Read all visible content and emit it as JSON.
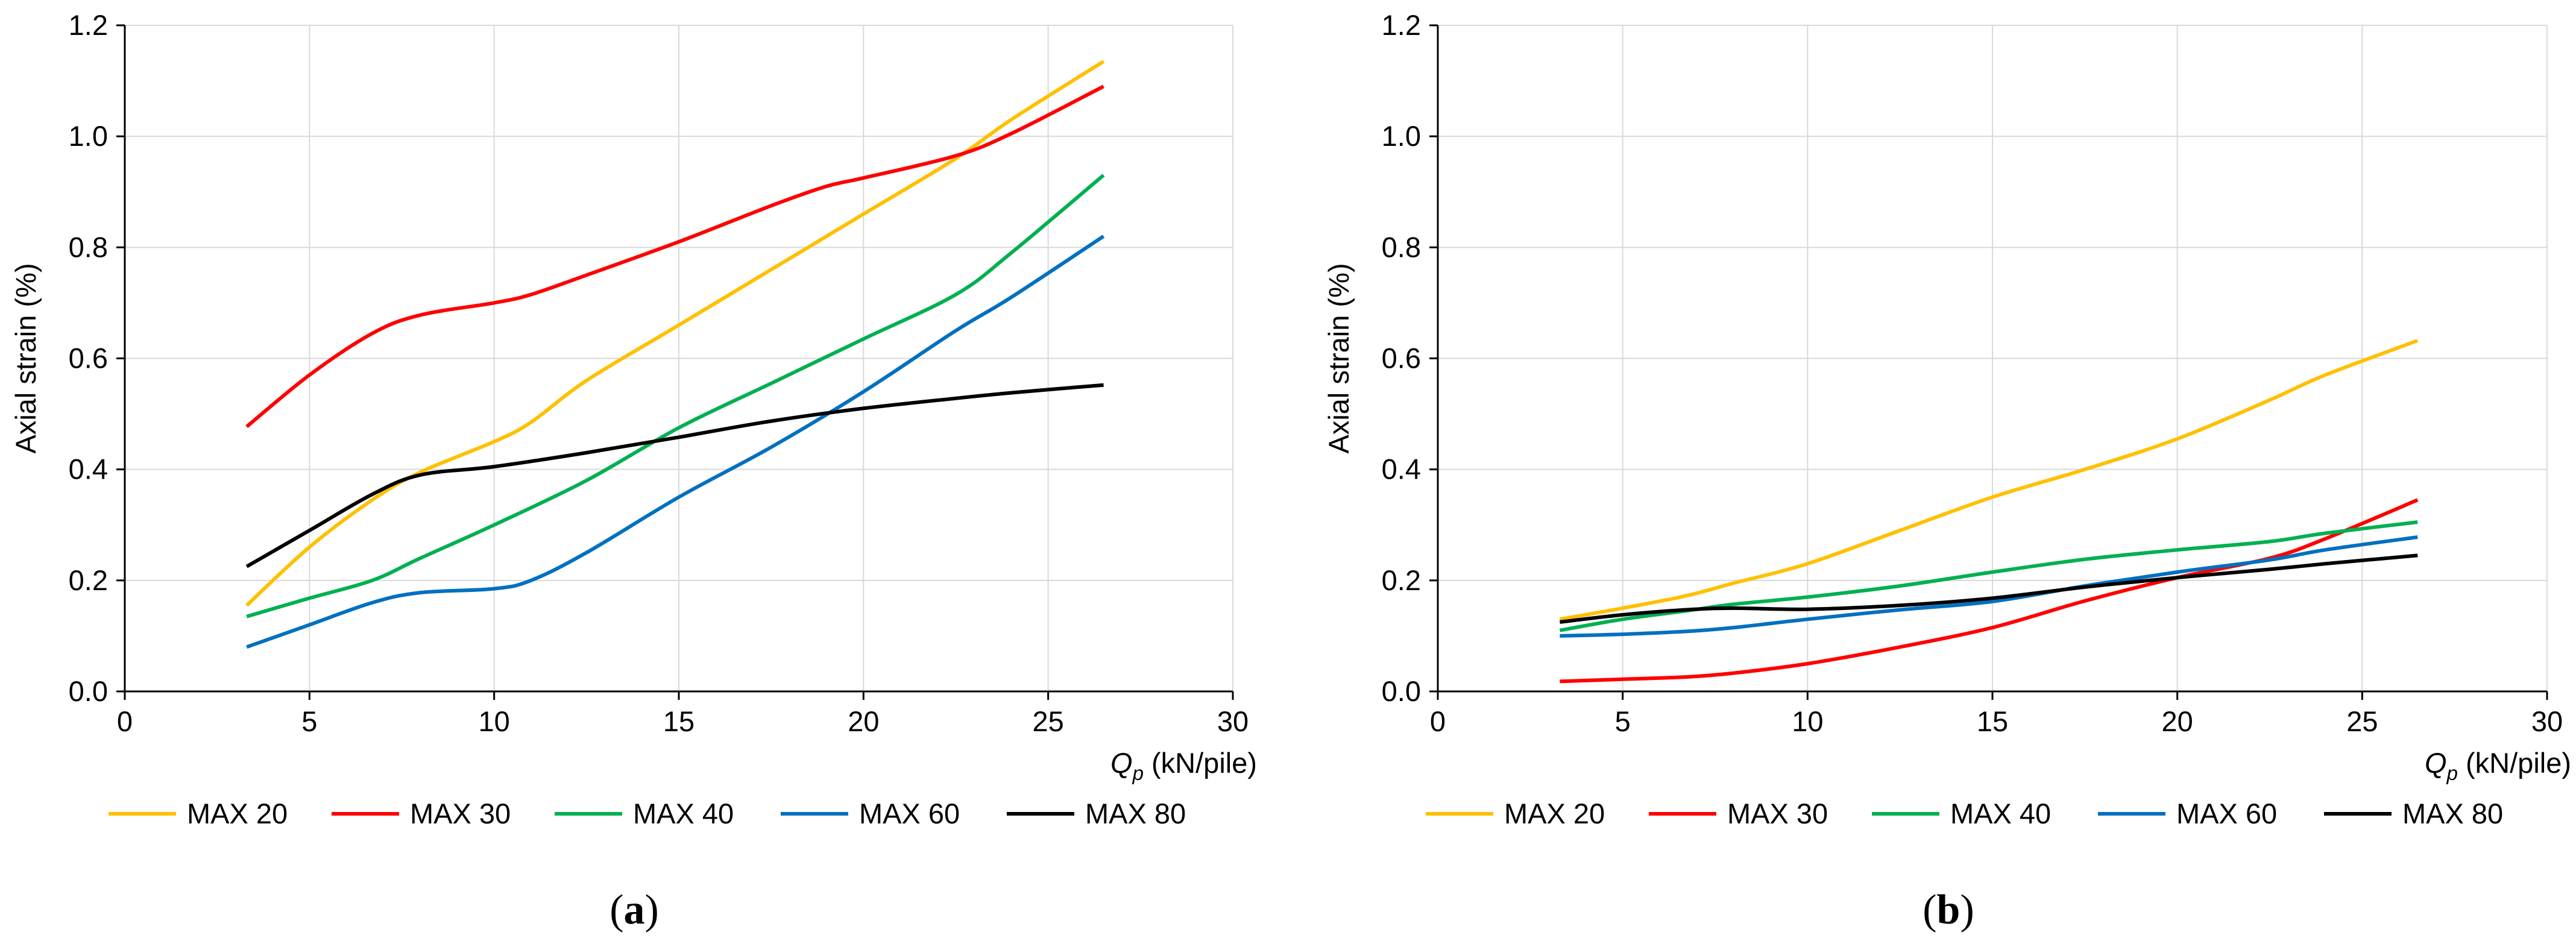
{
  "chart_data": [
    {
      "type": "line",
      "panel_label": "(a)",
      "xlabel": "Q",
      "xlabel_sub": "p",
      "xlabel_unit": "(kN/pile)",
      "ylabel": "Axial strain (%)",
      "xlim": [
        0,
        30
      ],
      "ylim": [
        0,
        1.2
      ],
      "xticks": [
        "0",
        "5",
        "10",
        "15",
        "20",
        "25",
        "30"
      ],
      "yticks": [
        "0.0",
        "0.2",
        "0.4",
        "0.6",
        "0.8",
        "1.0",
        "1.2"
      ],
      "grid": true,
      "legend": "bottom",
      "series": [
        {
          "name": "MAX 20",
          "color": "#FFC000",
          "x": [
            3.3,
            5,
            6.7,
            8,
            10,
            11,
            12.5,
            15,
            17.5,
            20,
            22.5,
            24,
            26.5
          ],
          "y": [
            0.155,
            0.26,
            0.345,
            0.395,
            0.45,
            0.485,
            0.56,
            0.66,
            0.76,
            0.86,
            0.96,
            1.03,
            1.135
          ]
        },
        {
          "name": "MAX 30",
          "color": "#FF0000",
          "x": [
            3.3,
            5,
            6.7,
            8,
            10,
            11,
            12.5,
            15,
            17.5,
            19,
            20,
            22.5,
            24,
            26.5
          ],
          "y": [
            0.477,
            0.57,
            0.645,
            0.678,
            0.7,
            0.715,
            0.75,
            0.81,
            0.875,
            0.91,
            0.925,
            0.965,
            1.005,
            1.09
          ]
        },
        {
          "name": "MAX 40",
          "color": "#00B050",
          "x": [
            3.3,
            5,
            6.7,
            8,
            10,
            12.5,
            15,
            17.5,
            20,
            22.5,
            24,
            26.5
          ],
          "y": [
            0.135,
            0.168,
            0.2,
            0.24,
            0.3,
            0.38,
            0.475,
            0.555,
            0.635,
            0.715,
            0.79,
            0.93
          ]
        },
        {
          "name": "MAX 60",
          "color": "#0070C0",
          "x": [
            3.3,
            5,
            6.7,
            8,
            10,
            11,
            12.5,
            15,
            17.5,
            20,
            22.5,
            24,
            26.5
          ],
          "y": [
            0.08,
            0.12,
            0.16,
            0.178,
            0.185,
            0.2,
            0.25,
            0.35,
            0.44,
            0.54,
            0.65,
            0.71,
            0.82
          ]
        },
        {
          "name": "MAX 80",
          "color": "#000000",
          "x": [
            3.3,
            5,
            6.7,
            8,
            10,
            12.5,
            15,
            17.5,
            20,
            22.5,
            24,
            26.5
          ],
          "y": [
            0.225,
            0.29,
            0.355,
            0.39,
            0.405,
            0.43,
            0.458,
            0.487,
            0.51,
            0.528,
            0.538,
            0.552
          ]
        }
      ]
    },
    {
      "type": "line",
      "panel_label": "(b)",
      "xlabel": "Q",
      "xlabel_sub": "p",
      "xlabel_unit": "(kN/pile)",
      "ylabel": "Axial strain (%)",
      "xlim": [
        0,
        30
      ],
      "ylim": [
        0,
        1.2
      ],
      "xticks": [
        "0",
        "5",
        "10",
        "15",
        "20",
        "25",
        "30"
      ],
      "yticks": [
        "0.0",
        "0.2",
        "0.4",
        "0.6",
        "0.8",
        "1.0",
        "1.2"
      ],
      "grid": true,
      "legend": "bottom",
      "series": [
        {
          "name": "MAX 20",
          "color": "#FFC000",
          "x": [
            3.3,
            5,
            6.7,
            8,
            10,
            12.5,
            15,
            17.5,
            20,
            22.5,
            24,
            26.5
          ],
          "y": [
            0.13,
            0.15,
            0.172,
            0.195,
            0.23,
            0.29,
            0.35,
            0.4,
            0.455,
            0.525,
            0.57,
            0.632
          ]
        },
        {
          "name": "MAX 30",
          "color": "#FF0000",
          "x": [
            3.3,
            5,
            6.7,
            8,
            10,
            12.5,
            15,
            17.5,
            20,
            22.5,
            24,
            26.5
          ],
          "y": [
            0.018,
            0.022,
            0.026,
            0.033,
            0.05,
            0.08,
            0.115,
            0.163,
            0.205,
            0.24,
            0.275,
            0.345
          ]
        },
        {
          "name": "MAX 40",
          "color": "#00B050",
          "x": [
            3.3,
            5,
            6.7,
            8,
            10,
            12.5,
            15,
            17.5,
            20,
            22.5,
            24,
            26.5
          ],
          "y": [
            0.11,
            0.13,
            0.145,
            0.157,
            0.17,
            0.19,
            0.215,
            0.238,
            0.255,
            0.27,
            0.285,
            0.305
          ]
        },
        {
          "name": "MAX 60",
          "color": "#0070C0",
          "x": [
            3.3,
            5,
            6.7,
            8,
            10,
            12.5,
            15,
            17.5,
            20,
            22.5,
            24,
            26.5
          ],
          "y": [
            0.1,
            0.103,
            0.108,
            0.115,
            0.13,
            0.147,
            0.162,
            0.19,
            0.215,
            0.237,
            0.255,
            0.278
          ]
        },
        {
          "name": "MAX 80",
          "color": "#000000",
          "x": [
            3.3,
            5,
            6.7,
            8,
            10,
            12.5,
            15,
            17.5,
            20,
            22.5,
            24,
            26.5
          ],
          "y": [
            0.125,
            0.138,
            0.147,
            0.15,
            0.148,
            0.155,
            0.168,
            0.188,
            0.205,
            0.22,
            0.23,
            0.245
          ]
        }
      ]
    }
  ]
}
